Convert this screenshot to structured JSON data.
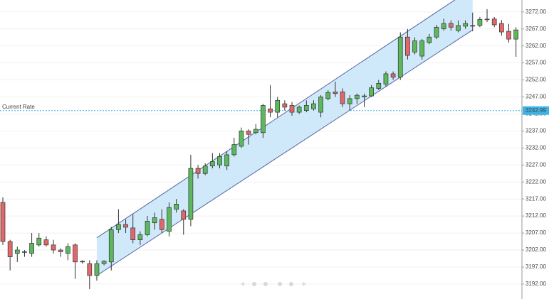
{
  "chart_data": {
    "type": "candlestick",
    "ylim": [
      3187.6,
      3275.5
    ],
    "yticks": [
      {
        "value": 3192,
        "label": "3192.00"
      },
      {
        "value": 3197,
        "label": "3197.00"
      },
      {
        "value": 3202,
        "label": "3202.00"
      },
      {
        "value": 3207,
        "label": "3207.00"
      },
      {
        "value": 3212,
        "label": "3212.00"
      },
      {
        "value": 3217,
        "label": "3217.00"
      },
      {
        "value": 3222,
        "label": "3222.00"
      },
      {
        "value": 3227,
        "label": "3227.00"
      },
      {
        "value": 3232,
        "label": "3232.00"
      },
      {
        "value": 3237,
        "label": "3237.00"
      },
      {
        "value": 3242,
        "label": "3242.00"
      },
      {
        "value": 3247,
        "label": "3247.00"
      },
      {
        "value": 3252,
        "label": "3252.00"
      },
      {
        "value": 3257,
        "label": "3257.00"
      },
      {
        "value": 3262,
        "label": "3262.00"
      },
      {
        "value": 3267,
        "label": "3267.00"
      },
      {
        "value": 3272,
        "label": "3272.00"
      }
    ],
    "grid": true,
    "up_color": "#5cb85c",
    "down_color": "#e0686a",
    "open": [
      3216,
      3204.5,
      3201,
      3201.5,
      3201,
      3203.5,
      3205,
      3203.5,
      3202,
      3201,
      3203.5,
      3198.7,
      3198,
      3194.5,
      3198,
      3198.5,
      3208,
      3209.5,
      3208.5,
      3205,
      3206.5,
      3210,
      3211,
      3207.5,
      3214,
      3213.5,
      3211,
      3226,
      3224.5,
      3226.7,
      3227,
      3226.7,
      3230,
      3232.5,
      3237,
      3236.5,
      3236.5,
      3243.5,
      3242.5,
      3245,
      3244.5,
      3242.5,
      3243,
      3243.5,
      3242.5,
      3246.5,
      3248.5,
      3248.5,
      3245,
      3246.5,
      3247,
      3247.3,
      3249.5,
      3250.8,
      3253.8,
      3252.8,
      3264.6,
      3260.2,
      3259,
      3263,
      3264.6,
      3267,
      3268.6,
      3266.5,
      3267.8,
      3268,
      3268,
      3269.9,
      3269.9,
      3268.6,
      3266.3,
      3264
    ],
    "high": [
      3217.5,
      3205,
      3203,
      3202,
      3207,
      3207,
      3206,
      3205,
      3202.5,
      3204,
      3204,
      3199,
      3199,
      3199,
      3199,
      3208.8,
      3214,
      3211,
      3212.5,
      3207.5,
      3212,
      3213,
      3214,
      3216,
      3217,
      3214,
      3230,
      3227,
      3227.5,
      3230.5,
      3230.5,
      3231,
      3235,
      3238,
      3237.5,
      3239,
      3245,
      3250.5,
      3247,
      3246,
      3245.5,
      3244.5,
      3246,
      3246,
      3247.5,
      3249,
      3251.5,
      3249.5,
      3247.5,
      3248,
      3248,
      3250.5,
      3252,
      3254.5,
      3254.5,
      3266,
      3267,
      3264.5,
      3264,
      3265.5,
      3268.2,
      3270,
      3269.5,
      3269.5,
      3269.5,
      3271.8,
      3270.5,
      3272.8,
      3270.5,
      3269.6,
      3268.5,
      3267.5
    ],
    "low": [
      3203.5,
      3196,
      3198.5,
      3200,
      3200,
      3203,
      3203,
      3201,
      3200,
      3199,
      3193.5,
      3198,
      3190.5,
      3193,
      3197.5,
      3196,
      3207,
      3207,
      3204,
      3203.5,
      3206,
      3208,
      3207,
      3206,
      3213,
      3206.5,
      3209,
      3223,
      3224,
      3226,
      3226,
      3225.5,
      3229.5,
      3232,
      3233,
      3236,
      3235,
      3241,
      3241,
      3243,
      3241.5,
      3242,
      3242.5,
      3243,
      3241,
      3246,
      3247,
      3244,
      3243,
      3245,
      3244,
      3247,
      3249,
      3250,
      3252,
      3252,
      3258,
      3259.5,
      3258,
      3262.5,
      3264,
      3266.5,
      3266.5,
      3266,
      3267,
      3266.3,
      3267.5,
      3269,
      3267.5,
      3265,
      3263,
      3258.8
    ],
    "close": [
      3204.5,
      3200,
      3202,
      3201.5,
      3204,
      3205.5,
      3203.5,
      3202,
      3201.5,
      3203,
      3198.5,
      3198.5,
      3194.5,
      3198,
      3198.7,
      3208,
      3209.5,
      3208.7,
      3205,
      3206.5,
      3210.5,
      3211.5,
      3208,
      3214.5,
      3215.5,
      3211,
      3226,
      3224.5,
      3226.7,
      3228,
      3229.5,
      3230,
      3233,
      3237,
      3236,
      3237.5,
      3244.5,
      3242.5,
      3246,
      3244,
      3242.5,
      3244,
      3244.5,
      3245,
      3247,
      3248.3,
      3248,
      3245,
      3246.5,
      3247.5,
      3247.3,
      3249.7,
      3251,
      3253.8,
      3252.8,
      3264.6,
      3259.2,
      3263.5,
      3263.5,
      3264.6,
      3267.5,
      3268.6,
      3267.5,
      3268,
      3268.6,
      3268,
      3269.8,
      3269.9,
      3268.2,
      3266.1,
      3264,
      3266.7
    ],
    "channel": {
      "x": [
        13,
        65
      ],
      "upper": [
        3205.6,
        3279
      ],
      "lower": [
        3194.5,
        3266.7
      ],
      "color": "#cfe9fb",
      "line_color": "#5566a0"
    },
    "current_rate": {
      "label": "Current Rate",
      "value": 3242.99,
      "color": "#3db3e6"
    }
  }
}
